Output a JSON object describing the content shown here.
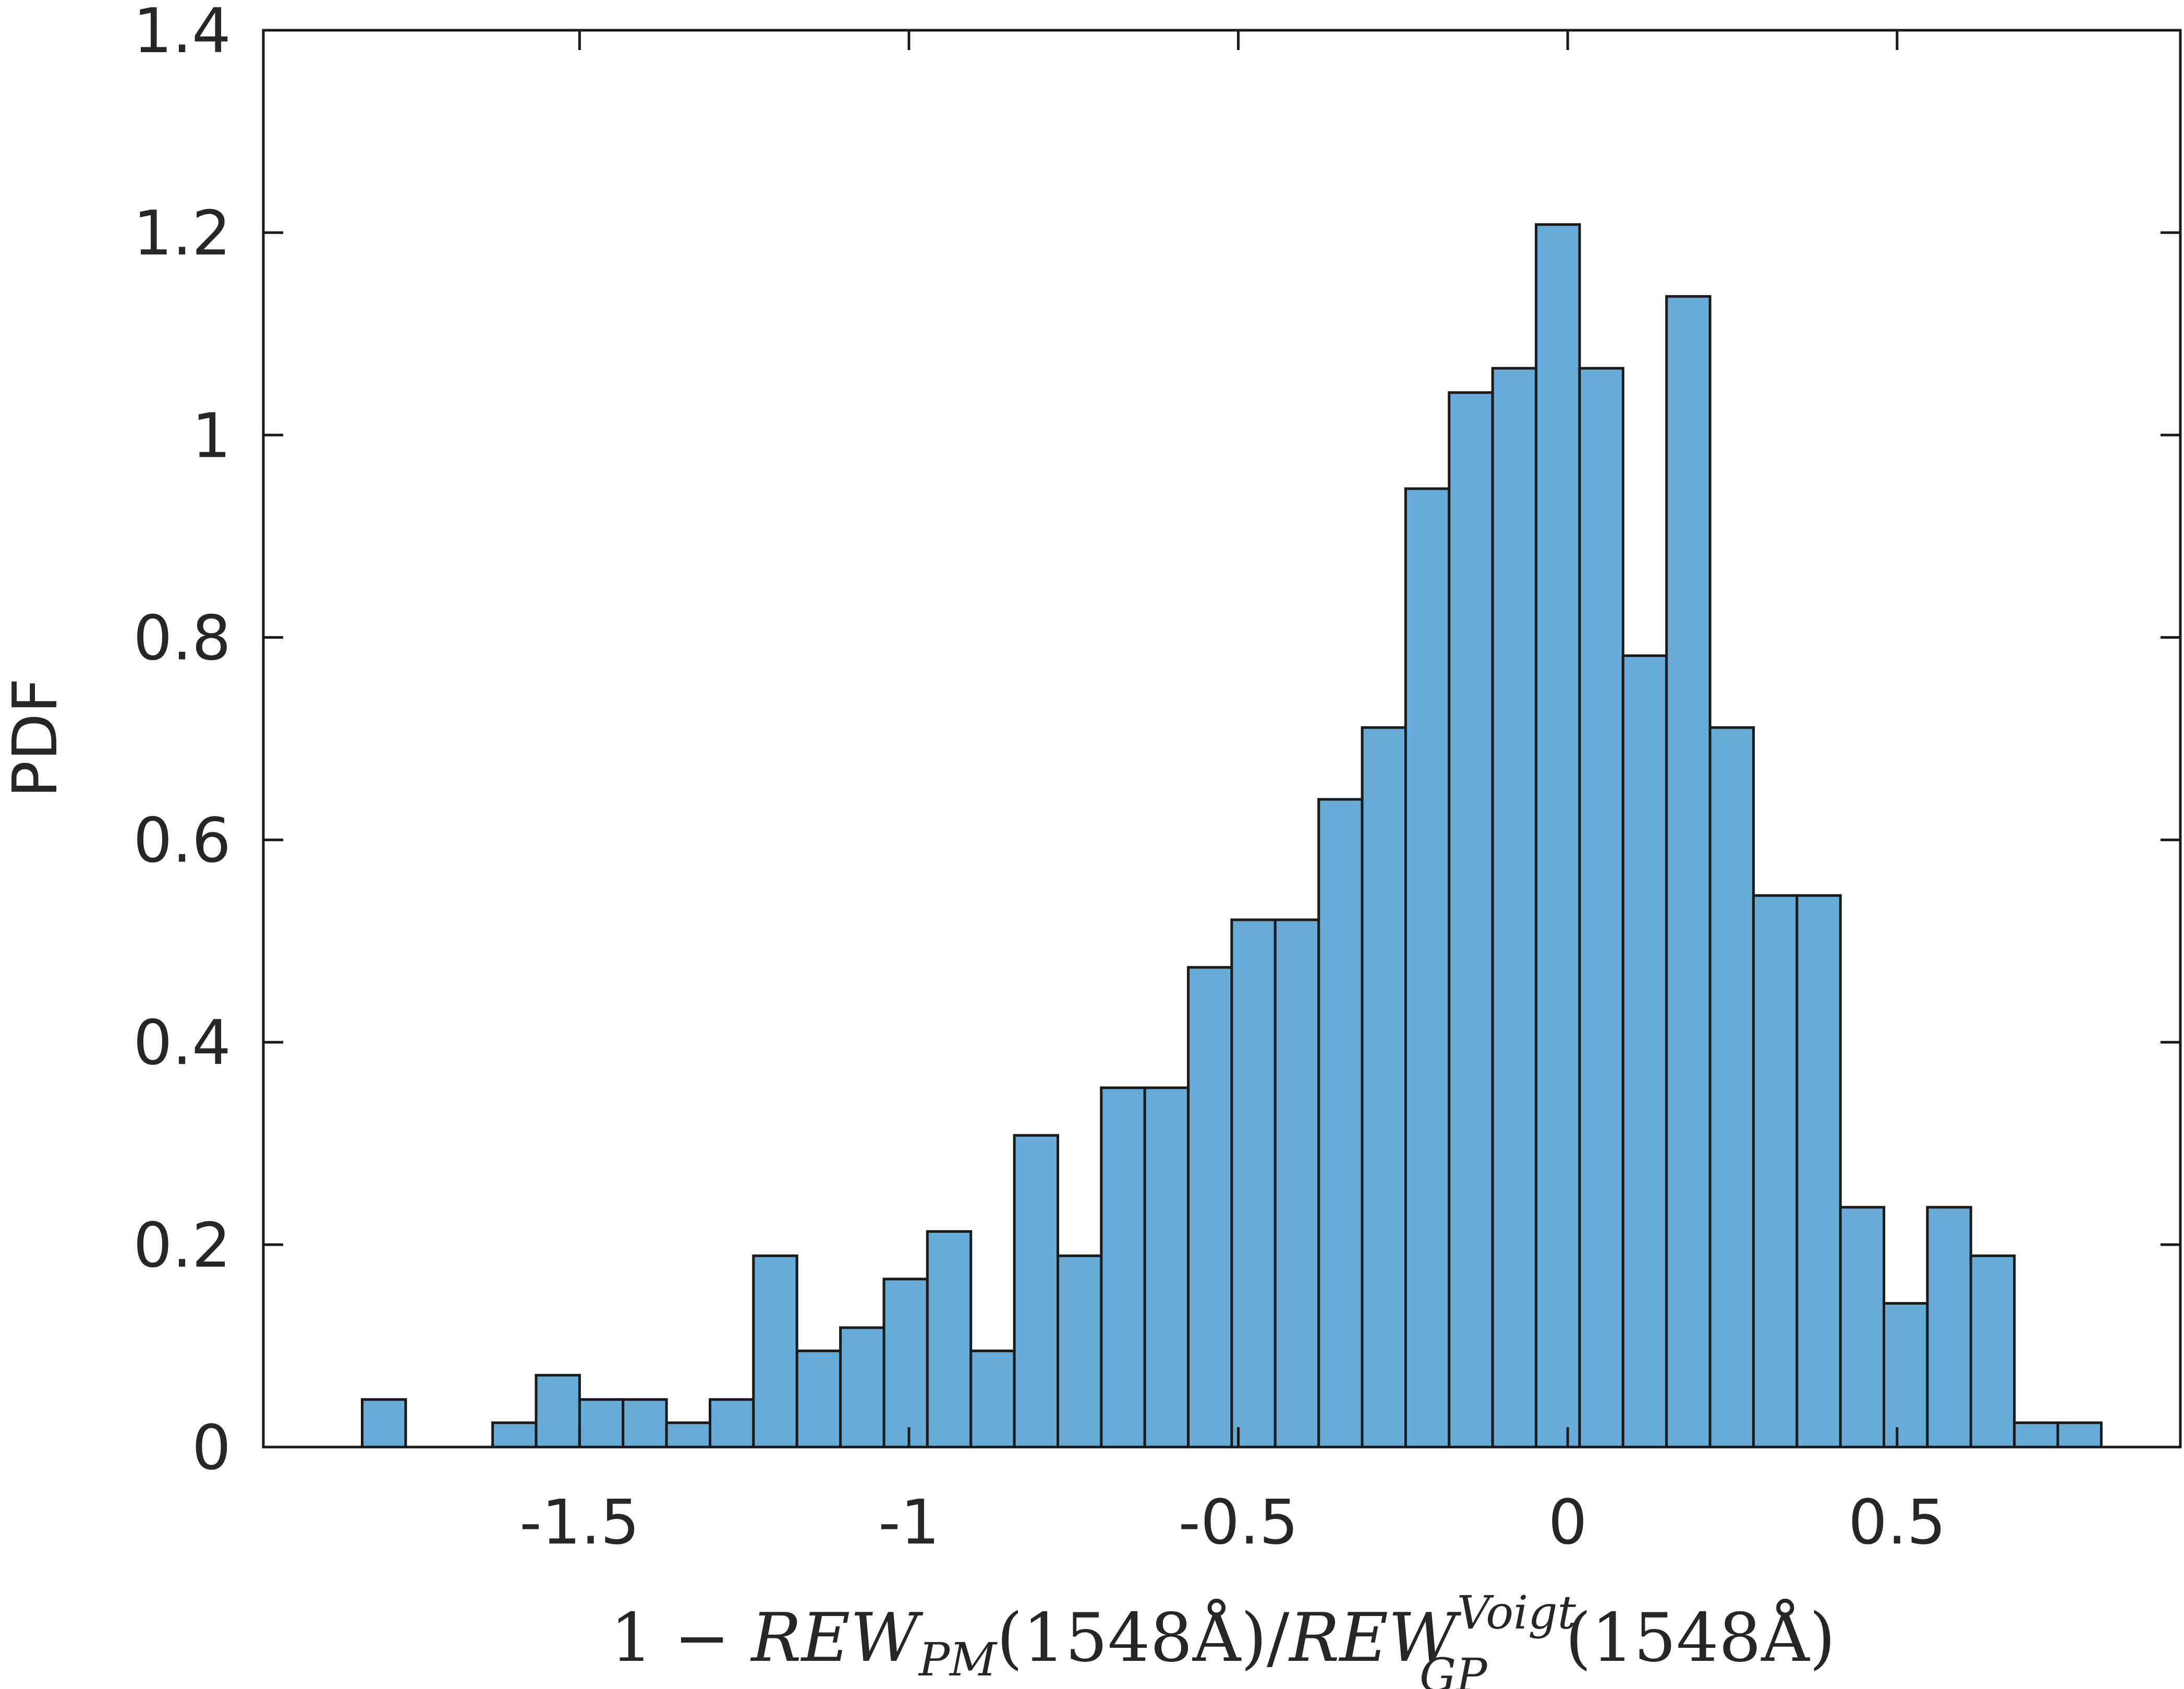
{
  "chart_data": {
    "type": "bar",
    "ylabel": "PDF",
    "xlabel_parts": {
      "lead": "1 − ",
      "num_main": "REW",
      "num_sub": "PM",
      "num_tail": "(1548Å)/",
      "den_main": "REW",
      "den_sup": "Voigt",
      "den_sub": "GP",
      "den_tail": "(1548Å)"
    },
    "xlim": [
      -1.98,
      0.93
    ],
    "ylim": [
      0,
      1.4
    ],
    "x_ticks": [
      -1.5,
      -1,
      -0.5,
      0,
      0.5
    ],
    "x_tick_labels": [
      "-1.5",
      "-1",
      "-0.5",
      "0",
      "0.5"
    ],
    "y_ticks": [
      0,
      0.2,
      0.4,
      0.6,
      0.8,
      1,
      1.2,
      1.4
    ],
    "y_tick_labels": [
      "0",
      "0.2",
      "0.4",
      "0.6",
      "0.8",
      "1",
      "1.2",
      "1.4"
    ],
    "bin_width": 0.066,
    "bins_left": [
      -1.83,
      -1.632,
      -1.566,
      -1.5,
      -1.434,
      -1.368,
      -1.302,
      -1.236,
      -1.17,
      -1.104,
      -1.038,
      -0.972,
      -0.906,
      -0.84,
      -0.774,
      -0.708,
      -0.642,
      -0.576,
      -0.51,
      -0.444,
      -0.378,
      -0.312,
      -0.246,
      -0.18,
      -0.114,
      -0.048,
      0.018,
      0.084,
      0.15,
      0.216,
      0.282,
      0.348,
      0.414,
      0.48,
      0.546,
      0.612,
      0.678
    ],
    "values": [
      0.047,
      0.024,
      0.071,
      0.047,
      0.047,
      0.024,
      0.047,
      0.189,
      0.095,
      0.118,
      0.166,
      0.213,
      0.095,
      0.308,
      0.189,
      0.355,
      0.355,
      0.474,
      0.521,
      0.521,
      0.64,
      0.711,
      0.947,
      1.042,
      1.066,
      1.208,
      1.066,
      0.782,
      1.137,
      0.711,
      0.545,
      0.545,
      0.237,
      0.142,
      0.237,
      0.189,
      0.024
    ],
    "extra_bins": [
      {
        "left": 0.744,
        "value": 0.024
      }
    ],
    "color": "#67abd8",
    "edge_color": "#1a1a1a",
    "grid": false
  }
}
